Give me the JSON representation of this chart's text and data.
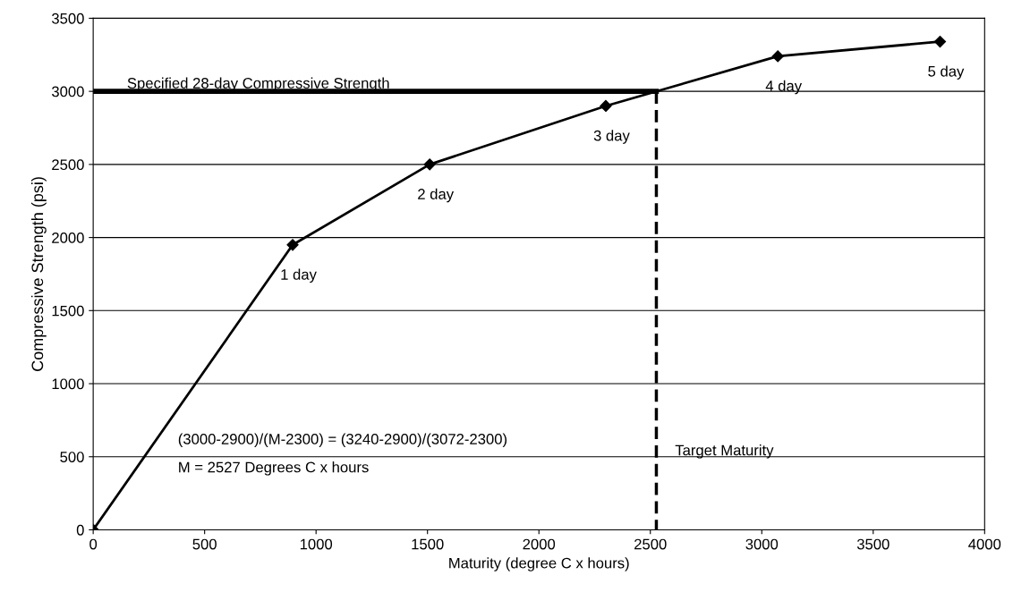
{
  "chart_data": {
    "type": "line",
    "xlabel": "Maturity (degree C x hours)",
    "ylabel": "Compressive Strength (psi)",
    "x": [
      0,
      895,
      1510,
      2300,
      3072,
      3800
    ],
    "series": [
      {
        "color": "#000000",
        "values": [
          0,
          1950,
          2500,
          2900,
          3240,
          3340
        ]
      }
    ],
    "xlim": [
      0,
      4000
    ],
    "xticks": [
      0,
      500,
      1000,
      1500,
      2000,
      2500,
      3000,
      3500,
      4000
    ],
    "ylim": [
      0,
      3500
    ],
    "yticks": [
      0,
      500,
      1000,
      1500,
      2000,
      2500,
      3000,
      3500
    ],
    "grid": "y",
    "marker": "diamond",
    "line_style": "solid",
    "ref_lines": [
      {
        "axis": "y",
        "value": 3000,
        "label": "Specified 28-day Compressive Strength",
        "color": "#000000",
        "line_style": "solid"
      },
      {
        "axis": "x",
        "value": 2527,
        "label": "Target Maturity",
        "color": "#000000",
        "line_style": "dashed"
      }
    ],
    "annotations": [
      {
        "text": "1 day",
        "x": 895,
        "y": 1950
      },
      {
        "text": "2 day",
        "x": 1510,
        "y": 2500
      },
      {
        "text": "3 day",
        "x": 2300,
        "y": 2900
      },
      {
        "text": "4 day",
        "x": 3072,
        "y": 3240
      },
      {
        "text": "5 day",
        "x": 3800,
        "y": 3340
      },
      "(3000-2900)/(M-2300) = (3240-2900)/(3072-2300)",
      "M = 2527 Degrees C x hours"
    ]
  }
}
